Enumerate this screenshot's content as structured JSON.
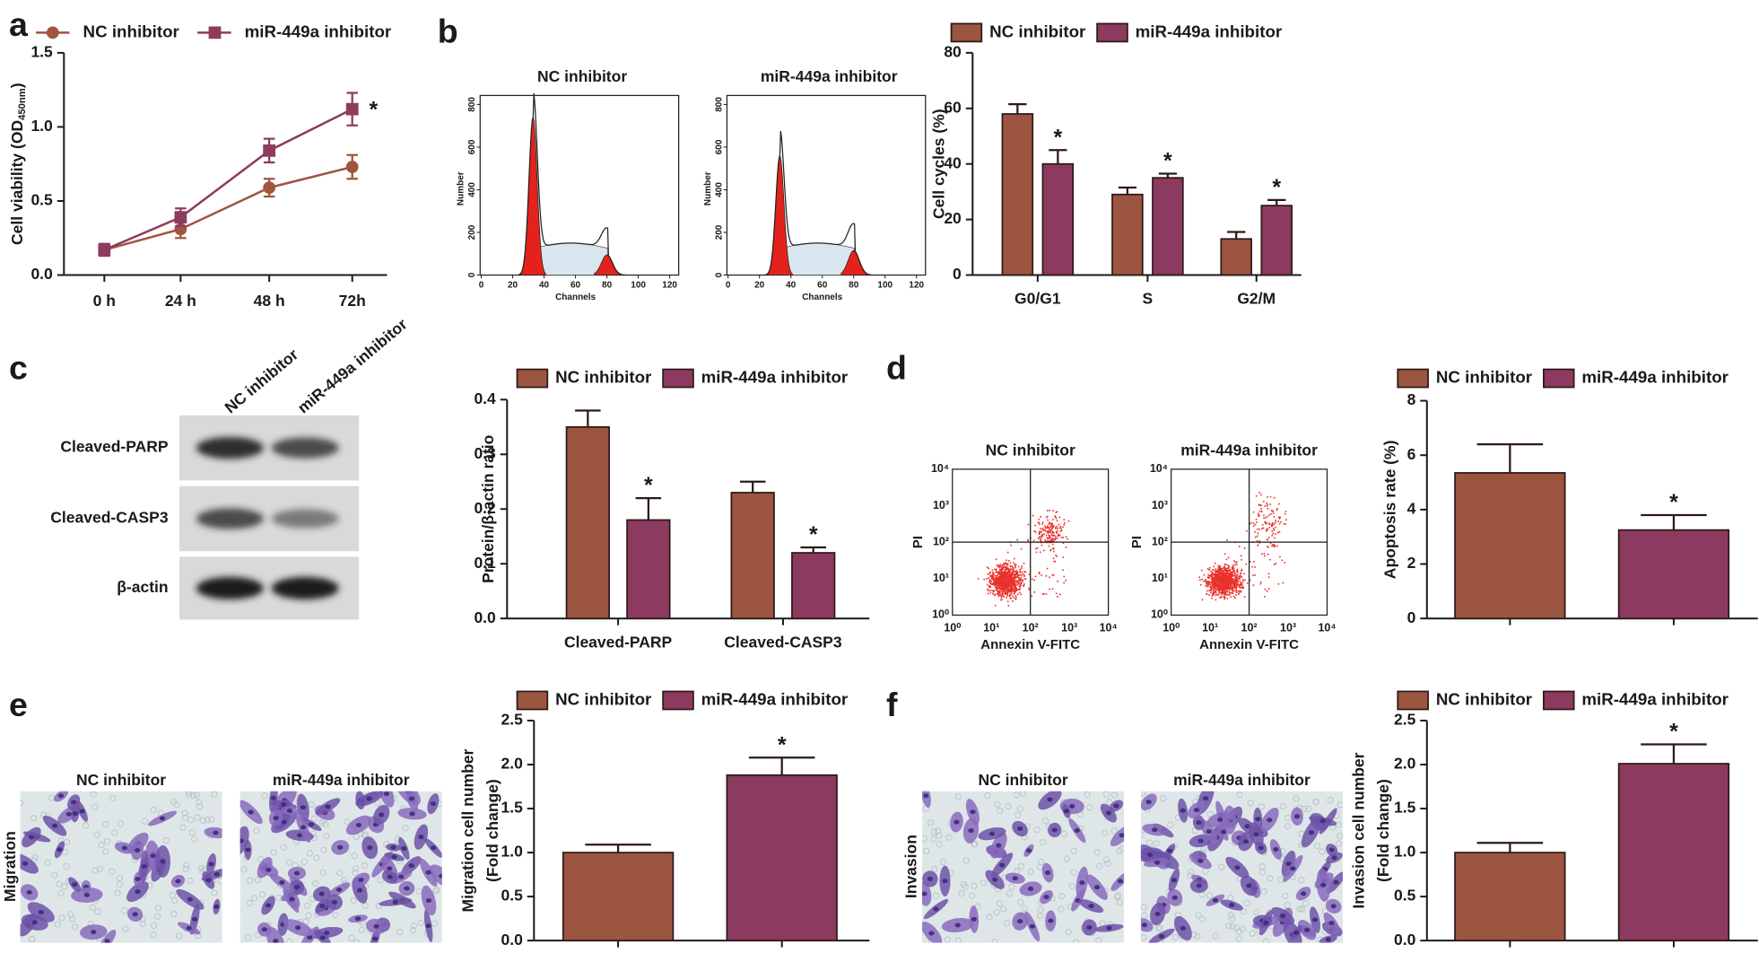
{
  "figure": {
    "panel_labels": [
      "a",
      "b",
      "c",
      "d",
      "e",
      "f"
    ],
    "flow_histograms": [
      {
        "title": "NC inhibitor",
        "xlabel": "Channels",
        "ylabel": "Number",
        "xlim": [
          0,
          120
        ],
        "xticks": [
          0,
          20,
          40,
          60,
          80,
          100,
          120
        ],
        "ylim": [
          0,
          800
        ],
        "yticks": [
          0,
          200,
          400,
          600,
          800
        ]
      },
      {
        "title": "miR-449a inhibitor",
        "xlabel": "Channels",
        "ylabel": "Number",
        "xlim": [
          0,
          120
        ],
        "xticks": [
          0,
          20,
          40,
          60,
          80,
          100,
          120
        ],
        "ylim": [
          0,
          800
        ],
        "yticks": [
          0,
          200,
          400,
          600,
          800
        ]
      }
    ],
    "western_blot": {
      "lanes": [
        "NC inhibitor",
        "miR-449a inhibitor"
      ],
      "bands": [
        "Cleaved-PARP",
        "Cleaved-CASP3",
        "β-actin"
      ]
    },
    "flow_scatter": [
      {
        "title": "NC inhibitor",
        "xlabel": "Annexin V-FITC",
        "ylabel": "PI",
        "log": true,
        "lim": [
          1,
          10000
        ],
        "ticks": [
          {
            "value": 1,
            "label": "10⁰"
          },
          {
            "value": 10,
            "label": "10¹"
          },
          {
            "value": 100,
            "label": "10²"
          },
          {
            "value": 1000,
            "label": "10³"
          },
          {
            "value": 10000,
            "label": "10⁴"
          }
        ]
      },
      {
        "title": "miR-449a inhibitor",
        "xlabel": "Annexin V-FITC",
        "ylabel": "PI",
        "log": true,
        "lim": [
          1,
          10000
        ],
        "ticks": [
          {
            "value": 1,
            "label": "10⁰"
          },
          {
            "value": 10,
            "label": "10¹"
          },
          {
            "value": 100,
            "label": "10²"
          },
          {
            "value": 1000,
            "label": "10³"
          },
          {
            "value": 10000,
            "label": "10⁴"
          }
        ]
      }
    ],
    "transwell": {
      "rows": [
        "Migration",
        "Invasion"
      ],
      "columns": [
        "NC inhibitor",
        "miR-449a inhibitor"
      ]
    }
  },
  "chart_data": [
    {
      "type": "line",
      "ylabel": "Cell viability (OD",
      "ylabel_sub": "450nm",
      "ylabel_end": ")",
      "categories": [
        "0 h",
        "24 h",
        "48 h",
        "72h"
      ],
      "ylim": [
        0,
        1.5
      ],
      "yticks": [
        {
          "value": 0,
          "label": "0.0"
        },
        {
          "value": 0.5,
          "label": "0.5"
        },
        {
          "value": 1,
          "label": "1.0"
        },
        {
          "value": 1.5,
          "label": "1.5"
        }
      ],
      "series": [
        {
          "name": "NC inhibitor",
          "color": "#a0553f",
          "marker": "circle",
          "values": [
            0.17,
            0.31,
            0.59,
            0.73
          ],
          "errors": [
            0.04,
            0.06,
            0.06,
            0.08
          ],
          "significance": [
            null,
            null,
            null,
            null
          ]
        },
        {
          "name": "miR-449a inhibitor",
          "color": "#8e3b5e",
          "marker": "square",
          "values": [
            0.17,
            0.39,
            0.84,
            1.12
          ],
          "errors": [
            0.04,
            0.06,
            0.08,
            0.11
          ],
          "significance": [
            null,
            null,
            null,
            "*"
          ]
        }
      ]
    },
    {
      "type": "bar",
      "ylabel": "Cell cycles (%)",
      "categories": [
        "G0/G1",
        "S",
        "G2/M"
      ],
      "ylim": [
        0,
        80
      ],
      "yticks": [
        0,
        20,
        40,
        60,
        80
      ],
      "series": [
        {
          "name": "NC inhibitor",
          "color": "#9b5540",
          "values": [
            58,
            29,
            13
          ],
          "errors": [
            3.5,
            2.5,
            2.5
          ],
          "significance": [
            null,
            null,
            null
          ]
        },
        {
          "name": "miR-449a inhibitor",
          "color": "#8c3a60",
          "values": [
            40,
            35,
            25
          ],
          "errors": [
            5,
            1.5,
            2
          ],
          "significance": [
            "*",
            "*",
            "*"
          ]
        }
      ]
    },
    {
      "type": "bar",
      "ylabel": "Protein/β-actin ratio",
      "categories": [
        "Cleaved-PARP",
        "Cleaved-CASP3"
      ],
      "ylim": [
        0,
        0.4
      ],
      "yticks": [
        {
          "value": 0,
          "label": "0.0"
        },
        0.1,
        0.2,
        0.3,
        0.4
      ],
      "series": [
        {
          "name": "NC inhibitor",
          "color": "#9b5540",
          "values": [
            0.35,
            0.23
          ],
          "errors": [
            0.03,
            0.02
          ],
          "significance": [
            null,
            null
          ]
        },
        {
          "name": "miR-449a inhibitor",
          "color": "#8c3a60",
          "values": [
            0.18,
            0.12
          ],
          "errors": [
            0.04,
            0.01
          ],
          "significance": [
            "*",
            "*"
          ]
        }
      ]
    },
    {
      "type": "bar",
      "ylabel": "Apoptosis rate (%)",
      "categories": [
        null
      ],
      "ylim": [
        0,
        8
      ],
      "yticks": [
        0,
        2,
        4,
        6,
        8
      ],
      "series": [
        {
          "name": "NC inhibitor",
          "color": "#9b5540",
          "values": [
            5.35
          ],
          "errors": [
            1.05
          ],
          "significance": [
            null
          ]
        },
        {
          "name": "miR-449a inhibitor",
          "color": "#8c3a60",
          "values": [
            3.25
          ],
          "errors": [
            0.55
          ],
          "significance": [
            "*"
          ]
        }
      ]
    },
    {
      "type": "bar",
      "ylabel": [
        "Migration cell number",
        "(Fold change)"
      ],
      "categories": [
        null
      ],
      "ylim": [
        0,
        2.5
      ],
      "yticks": [
        {
          "value": 0,
          "label": "0.0"
        },
        0.5,
        {
          "value": 1,
          "label": "1.0"
        },
        1.5,
        {
          "value": 2,
          "label": "2.0"
        },
        2.5
      ],
      "series": [
        {
          "name": "NC inhibitor",
          "color": "#9b5540",
          "values": [
            1.0
          ],
          "errors": [
            0.09
          ],
          "significance": [
            null
          ]
        },
        {
          "name": "miR-449a inhibitor",
          "color": "#8c3a60",
          "values": [
            1.88
          ],
          "errors": [
            0.2
          ],
          "significance": [
            "*"
          ]
        }
      ]
    },
    {
      "type": "bar",
      "ylabel": [
        "Invasion cell number",
        "(Fold change)"
      ],
      "categories": [
        null
      ],
      "ylim": [
        0,
        2.5
      ],
      "yticks": [
        {
          "value": 0,
          "label": "0.0"
        },
        0.5,
        {
          "value": 1,
          "label": "1.0"
        },
        1.5,
        {
          "value": 2,
          "label": "2.0"
        },
        2.5
      ],
      "series": [
        {
          "name": "NC inhibitor",
          "color": "#9b5540",
          "values": [
            1.0
          ],
          "errors": [
            0.11
          ],
          "significance": [
            null
          ]
        },
        {
          "name": "miR-449a inhibitor",
          "color": "#8c3a60",
          "values": [
            2.01
          ],
          "errors": [
            0.22
          ],
          "significance": [
            "*"
          ]
        }
      ]
    }
  ]
}
